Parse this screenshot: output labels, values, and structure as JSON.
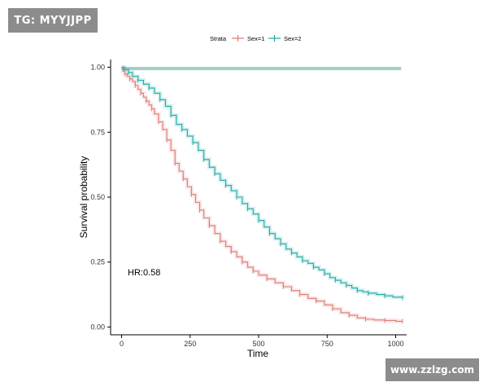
{
  "watermarks": {
    "top_left": "TG: MYYJJPP",
    "bottom_right": "www.zzlzg.com"
  },
  "chart_data": {
    "type": "line",
    "title": "",
    "xlabel": "Time",
    "ylabel": "Survival probability",
    "xlim": [
      -40,
      1040
    ],
    "ylim": [
      -0.03,
      1.03
    ],
    "xticks": [
      0,
      250,
      500,
      750,
      1000
    ],
    "xtick_labels": [
      "0",
      "250",
      "500",
      "750",
      "1000"
    ],
    "yticks": [
      0,
      0.25,
      0.5,
      0.75,
      1.0
    ],
    "ytick_labels": [
      "0.00",
      "0.25",
      "0.50",
      "0.75",
      "1.00"
    ],
    "grid": false,
    "legend": {
      "title": "Strata",
      "position": "top",
      "entries": [
        {
          "name": "Sex=1",
          "color": "#e07a74"
        },
        {
          "name": "Sex=2",
          "color": "#1eaaa8"
        }
      ]
    },
    "annotation": "HR:0.58",
    "reference_line": {
      "y": 0.995,
      "x_start": 0,
      "x_end": 1020,
      "color": "#9fcfc6"
    },
    "series": [
      {
        "name": "Sex=1",
        "color": "#e07a74",
        "x": [
          0,
          5,
          12,
          20,
          30,
          40,
          50,
          60,
          70,
          80,
          90,
          100,
          110,
          120,
          135,
          150,
          165,
          180,
          195,
          210,
          225,
          240,
          255,
          270,
          285,
          300,
          320,
          340,
          360,
          380,
          400,
          420,
          440,
          460,
          480,
          500,
          530,
          560,
          590,
          620,
          650,
          680,
          710,
          740,
          770,
          800,
          830,
          860,
          890,
          920,
          960,
          1000,
          1025
        ],
        "y": [
          1.0,
          0.985,
          0.975,
          0.965,
          0.955,
          0.945,
          0.93,
          0.915,
          0.9,
          0.885,
          0.87,
          0.855,
          0.84,
          0.82,
          0.79,
          0.76,
          0.72,
          0.68,
          0.63,
          0.6,
          0.57,
          0.54,
          0.51,
          0.48,
          0.45,
          0.42,
          0.39,
          0.36,
          0.33,
          0.31,
          0.29,
          0.27,
          0.25,
          0.23,
          0.215,
          0.2,
          0.185,
          0.17,
          0.155,
          0.14,
          0.125,
          0.11,
          0.1,
          0.085,
          0.07,
          0.055,
          0.045,
          0.035,
          0.03,
          0.027,
          0.025,
          0.022,
          0.022
        ]
      },
      {
        "name": "Sex=2",
        "color": "#1eaaa8",
        "x": [
          0,
          10,
          25,
          40,
          60,
          80,
          100,
          120,
          140,
          160,
          180,
          200,
          220,
          240,
          260,
          280,
          300,
          320,
          340,
          360,
          380,
          400,
          420,
          440,
          460,
          480,
          500,
          520,
          540,
          560,
          580,
          600,
          620,
          640,
          660,
          680,
          700,
          720,
          740,
          760,
          780,
          800,
          820,
          840,
          860,
          880,
          900,
          930,
          960,
          990,
          1025
        ],
        "y": [
          1.0,
          0.99,
          0.98,
          0.965,
          0.95,
          0.935,
          0.92,
          0.9,
          0.875,
          0.85,
          0.815,
          0.78,
          0.76,
          0.735,
          0.71,
          0.68,
          0.645,
          0.615,
          0.59,
          0.565,
          0.545,
          0.525,
          0.5,
          0.475,
          0.455,
          0.435,
          0.41,
          0.385,
          0.36,
          0.34,
          0.32,
          0.3,
          0.285,
          0.27,
          0.255,
          0.245,
          0.23,
          0.22,
          0.205,
          0.19,
          0.18,
          0.17,
          0.16,
          0.15,
          0.14,
          0.135,
          0.13,
          0.125,
          0.12,
          0.115,
          0.112
        ]
      }
    ]
  }
}
